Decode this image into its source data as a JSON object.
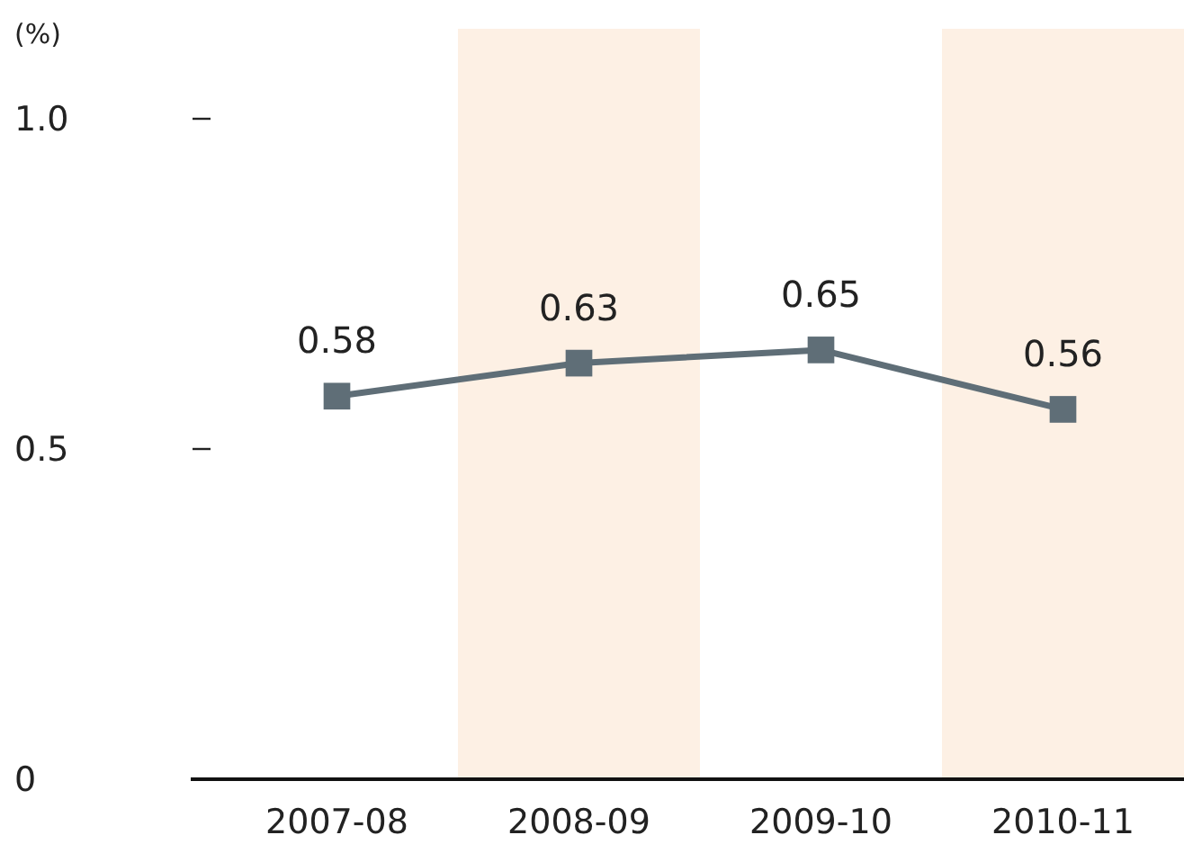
{
  "chart_data": {
    "type": "line",
    "ylabel": "(%)",
    "categories": [
      "2007-08",
      "2008-09",
      "2009-10",
      "2010-11"
    ],
    "series": [
      {
        "color": "#5f6e77",
        "values": [
          0.58,
          0.63,
          0.65,
          0.56
        ]
      }
    ],
    "ylim": [
      0,
      1.0
    ],
    "yticks": [
      0,
      {
        "value": 0.5,
        "label": "0.5"
      },
      {
        "value": 1,
        "label": "1.0"
      }
    ],
    "marker": "square",
    "data_labels": true,
    "grid": false,
    "bands": [
      {
        "axis": "x",
        "from": "2008-09",
        "to": "2008-09",
        "color": "#fdf0e4"
      },
      {
        "axis": "x",
        "from": "2010-11",
        "to": "2010-11",
        "color": "#fdf0e4"
      }
    ]
  }
}
